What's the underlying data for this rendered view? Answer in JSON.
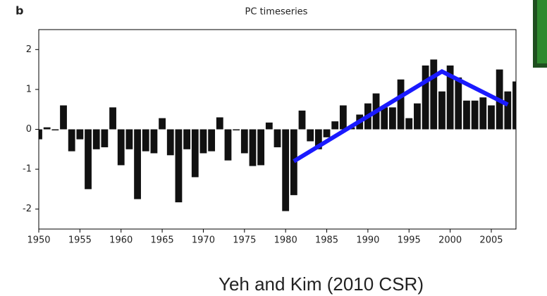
{
  "chart_data": {
    "type": "bar",
    "panel_label": "b",
    "title": "PC timeseries",
    "caption": "Yeh and Kim (2010 CSR)",
    "x": [
      1950,
      1951,
      1952,
      1953,
      1954,
      1955,
      1956,
      1957,
      1958,
      1959,
      1960,
      1961,
      1962,
      1963,
      1964,
      1965,
      1966,
      1967,
      1968,
      1969,
      1970,
      1971,
      1972,
      1973,
      1974,
      1975,
      1976,
      1977,
      1978,
      1979,
      1980,
      1981,
      1982,
      1983,
      1984,
      1985,
      1986,
      1987,
      1988,
      1989,
      1990,
      1991,
      1992,
      1993,
      1994,
      1995,
      1996,
      1997,
      1998,
      1999,
      2000,
      2001,
      2002,
      2003,
      2004,
      2005,
      2006,
      2007,
      2008
    ],
    "values": [
      -0.25,
      0.05,
      -0.02,
      0.6,
      -0.55,
      -0.25,
      -1.5,
      -0.5,
      -0.45,
      0.55,
      -0.9,
      -0.5,
      -1.75,
      -0.55,
      -0.6,
      0.28,
      -0.65,
      -1.83,
      -0.5,
      -1.2,
      -0.6,
      -0.55,
      0.3,
      -0.78,
      -0.02,
      -0.6,
      -0.92,
      -0.9,
      0.17,
      -0.45,
      -2.05,
      -1.65,
      0.47,
      -0.3,
      -0.5,
      -0.2,
      0.2,
      0.6,
      0.05,
      0.37,
      0.65,
      0.9,
      0.55,
      0.55,
      1.25,
      0.28,
      0.65,
      1.6,
      1.75,
      0.95,
      1.6,
      1.3,
      0.72,
      0.72,
      0.8,
      0.6,
      1.5,
      0.95,
      1.2
    ],
    "color": "#111111",
    "trend": {
      "x": [
        1981,
        1999,
        2007
      ],
      "values": [
        -0.8,
        1.45,
        0.62
      ],
      "color": "#1a1aff"
    },
    "xlim": [
      1950,
      2008
    ],
    "ylim": [
      -2.5,
      2.5
    ],
    "xticks": [
      1950,
      1955,
      1960,
      1965,
      1970,
      1975,
      1980,
      1985,
      1990,
      1995,
      2000,
      2005
    ],
    "yticks": [
      -2,
      -1,
      0,
      1,
      2
    ]
  }
}
